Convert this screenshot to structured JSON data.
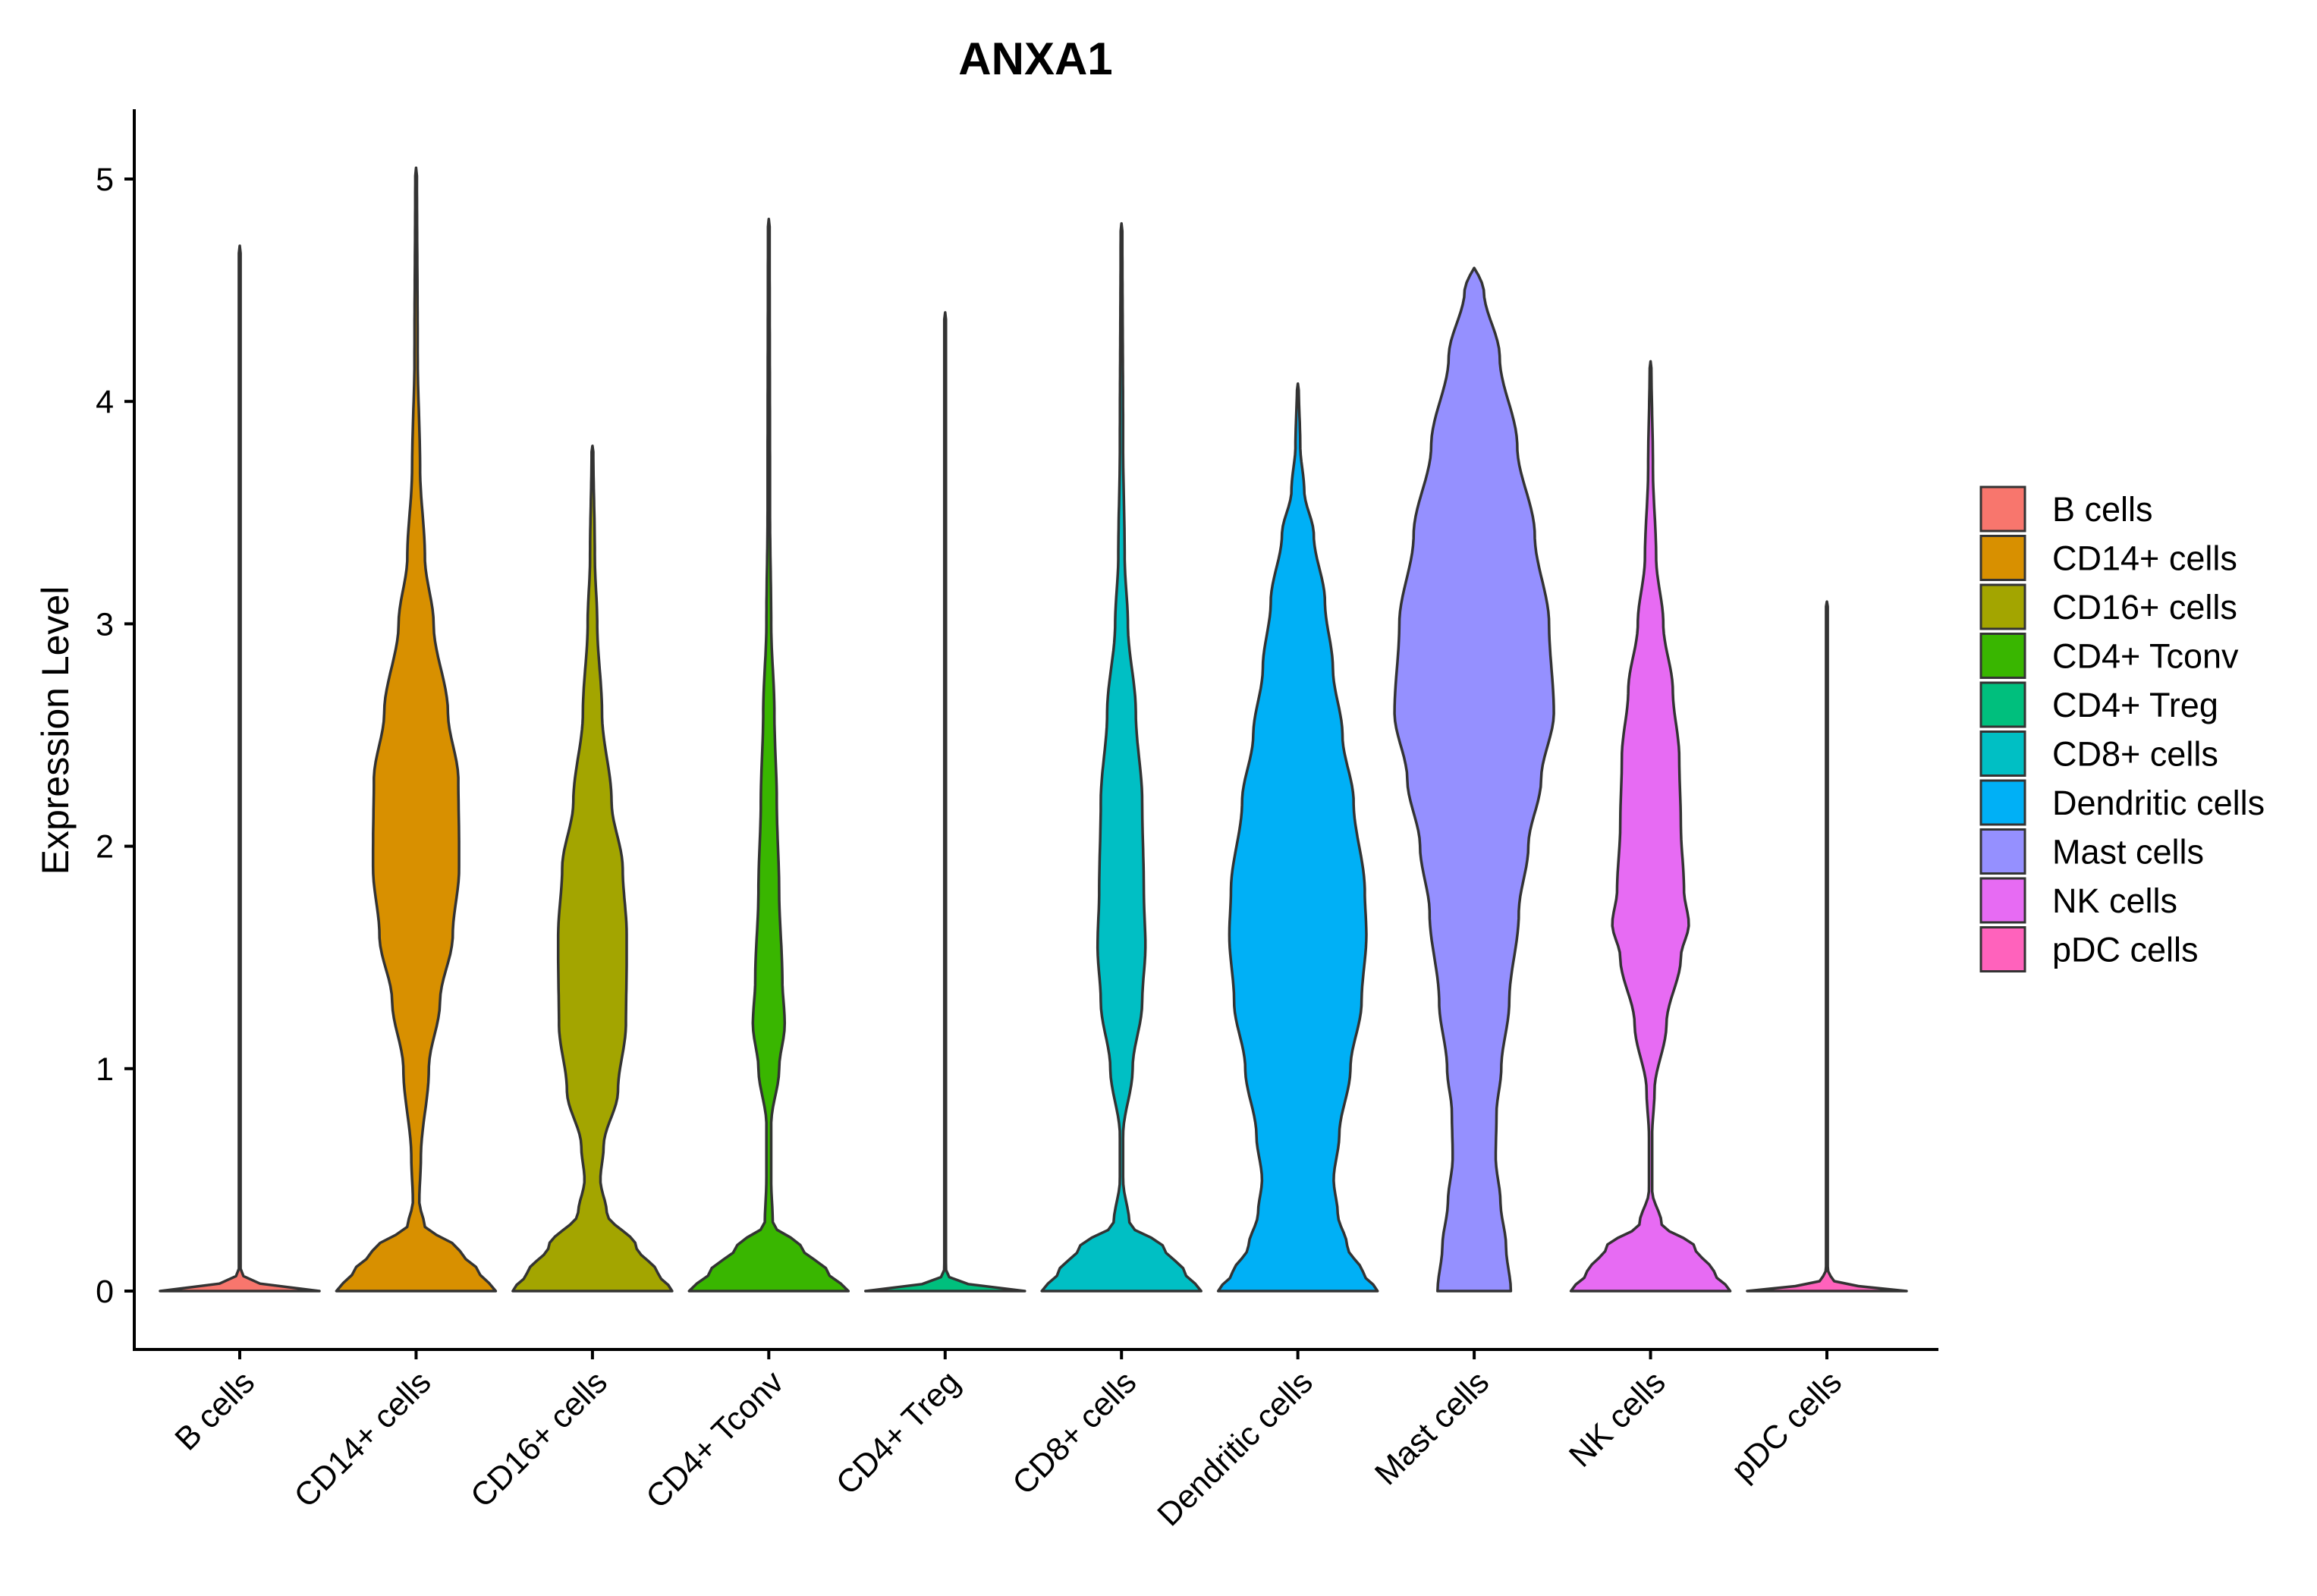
{
  "chart_data": {
    "type": "violin",
    "title": "ANXA1",
    "xlabel": "",
    "ylabel": "Expression Level",
    "ylim": [
      -0.25,
      5.3
    ],
    "yticks": [
      0,
      1,
      2,
      3,
      4,
      5
    ],
    "categories": [
      "B cells",
      "CD14+ cells",
      "CD16+ cells",
      "CD4+ Tconv",
      "CD4+ Treg",
      "CD8+ cells",
      "Dendritic cells",
      "Mast cells",
      "NK cells",
      "pDC cells"
    ],
    "legend": {
      "position": "right",
      "entries": [
        "B cells",
        "CD14+ cells",
        "CD16+ cells",
        "CD4+ Tconv",
        "CD4+ Treg",
        "CD8+ cells",
        "Dendritic cells",
        "Mast cells",
        "NK cells",
        "pDC cells"
      ]
    },
    "series": [
      {
        "name": "B cells",
        "color": "#F8766D",
        "max": 4.7,
        "profile": [
          [
            0,
            1.0
          ],
          [
            0.02,
            0.4
          ],
          [
            0.05,
            0.06
          ],
          [
            0.1,
            0.01
          ],
          [
            4.7,
            0.01
          ]
        ]
      },
      {
        "name": "CD14+ cells",
        "color": "#D89000",
        "max": 5.05,
        "profile": [
          [
            0,
            1.0
          ],
          [
            0.08,
            0.8
          ],
          [
            0.18,
            0.55
          ],
          [
            0.3,
            0.1
          ],
          [
            0.4,
            0.04
          ],
          [
            0.6,
            0.06
          ],
          [
            1.0,
            0.16
          ],
          [
            1.3,
            0.3
          ],
          [
            1.6,
            0.46
          ],
          [
            1.9,
            0.54
          ],
          [
            2.0,
            0.54
          ],
          [
            2.3,
            0.53
          ],
          [
            2.6,
            0.4
          ],
          [
            3.0,
            0.22
          ],
          [
            3.3,
            0.11
          ],
          [
            3.7,
            0.05
          ],
          [
            4.2,
            0.02
          ],
          [
            5.05,
            0.01
          ]
        ]
      },
      {
        "name": "CD16+ cells",
        "color": "#A3A500",
        "max": 3.8,
        "profile": [
          [
            0,
            1.0
          ],
          [
            0.08,
            0.82
          ],
          [
            0.2,
            0.55
          ],
          [
            0.35,
            0.18
          ],
          [
            0.5,
            0.1
          ],
          [
            0.65,
            0.14
          ],
          [
            0.9,
            0.32
          ],
          [
            1.2,
            0.42
          ],
          [
            1.5,
            0.43
          ],
          [
            1.6,
            0.43
          ],
          [
            1.9,
            0.38
          ],
          [
            2.2,
            0.24
          ],
          [
            2.6,
            0.12
          ],
          [
            3.0,
            0.06
          ],
          [
            3.3,
            0.03
          ],
          [
            3.8,
            0.01
          ]
        ]
      },
      {
        "name": "CD4+ Tconv",
        "color": "#39B600",
        "max": 4.82,
        "profile": [
          [
            0,
            1.0
          ],
          [
            0.08,
            0.75
          ],
          [
            0.2,
            0.4
          ],
          [
            0.3,
            0.05
          ],
          [
            0.5,
            0.03
          ],
          [
            0.75,
            0.03
          ],
          [
            1.0,
            0.13
          ],
          [
            1.2,
            0.2
          ],
          [
            1.4,
            0.17
          ],
          [
            1.8,
            0.13
          ],
          [
            2.2,
            0.1
          ],
          [
            2.6,
            0.07
          ],
          [
            3.0,
            0.03
          ],
          [
            3.5,
            0.015
          ],
          [
            4.82,
            0.01
          ]
        ]
      },
      {
        "name": "CD4+ Treg",
        "color": "#00BF7D",
        "max": 4.4,
        "profile": [
          [
            0,
            1.0
          ],
          [
            0.02,
            0.4
          ],
          [
            0.05,
            0.06
          ],
          [
            0.1,
            0.01
          ],
          [
            4.4,
            0.01
          ]
        ]
      },
      {
        "name": "CD8+ cells",
        "color": "#00BFC4",
        "max": 4.8,
        "profile": [
          [
            0,
            1.0
          ],
          [
            0.08,
            0.8
          ],
          [
            0.2,
            0.52
          ],
          [
            0.3,
            0.1
          ],
          [
            0.5,
            0.02
          ],
          [
            0.7,
            0.02
          ],
          [
            1.0,
            0.14
          ],
          [
            1.3,
            0.26
          ],
          [
            1.55,
            0.3
          ],
          [
            1.8,
            0.28
          ],
          [
            2.2,
            0.26
          ],
          [
            2.6,
            0.18
          ],
          [
            3.0,
            0.08
          ],
          [
            3.3,
            0.04
          ],
          [
            3.8,
            0.02
          ],
          [
            4.8,
            0.01
          ]
        ]
      },
      {
        "name": "Dendritic cells",
        "color": "#00B0F6",
        "max": 4.08,
        "profile": [
          [
            0,
            1.0
          ],
          [
            0.08,
            0.82
          ],
          [
            0.2,
            0.62
          ],
          [
            0.35,
            0.5
          ],
          [
            0.5,
            0.45
          ],
          [
            0.7,
            0.52
          ],
          [
            1.0,
            0.66
          ],
          [
            1.3,
            0.8
          ],
          [
            1.6,
            0.86
          ],
          [
            1.8,
            0.84
          ],
          [
            2.2,
            0.7
          ],
          [
            2.5,
            0.56
          ],
          [
            2.8,
            0.44
          ],
          [
            3.1,
            0.34
          ],
          [
            3.4,
            0.2
          ],
          [
            3.6,
            0.08
          ],
          [
            3.8,
            0.03
          ],
          [
            4.08,
            0.01
          ]
        ]
      },
      {
        "name": "Mast cells",
        "color": "#9590FF",
        "max": 4.6,
        "profile": [
          [
            0,
            0.46
          ],
          [
            0.2,
            0.4
          ],
          [
            0.4,
            0.33
          ],
          [
            0.6,
            0.27
          ],
          [
            0.8,
            0.28
          ],
          [
            1.0,
            0.34
          ],
          [
            1.3,
            0.44
          ],
          [
            1.7,
            0.56
          ],
          [
            2.0,
            0.68
          ],
          [
            2.3,
            0.84
          ],
          [
            2.6,
            1.0
          ],
          [
            3.0,
            0.94
          ],
          [
            3.4,
            0.76
          ],
          [
            3.8,
            0.54
          ],
          [
            4.2,
            0.32
          ],
          [
            4.5,
            0.12
          ],
          [
            4.6,
            0.03
          ]
        ]
      },
      {
        "name": "NK cells",
        "color": "#E76BF3",
        "max": 4.18,
        "profile": [
          [
            0,
            1.0
          ],
          [
            0.08,
            0.8
          ],
          [
            0.2,
            0.55
          ],
          [
            0.3,
            0.14
          ],
          [
            0.45,
            0.02
          ],
          [
            0.7,
            0.02
          ],
          [
            0.9,
            0.05
          ],
          [
            1.2,
            0.2
          ],
          [
            1.5,
            0.38
          ],
          [
            1.65,
            0.48
          ],
          [
            1.8,
            0.42
          ],
          [
            2.1,
            0.38
          ],
          [
            2.4,
            0.36
          ],
          [
            2.7,
            0.28
          ],
          [
            3.0,
            0.16
          ],
          [
            3.3,
            0.07
          ],
          [
            3.7,
            0.03
          ],
          [
            4.18,
            0.01
          ]
        ]
      },
      {
        "name": "pDC cells",
        "color": "#FF62BC",
        "max": 3.1,
        "profile": [
          [
            0,
            1.0
          ],
          [
            0.02,
            0.4
          ],
          [
            0.05,
            0.06
          ],
          [
            0.1,
            0.01
          ],
          [
            3.1,
            0.01
          ]
        ]
      }
    ]
  }
}
